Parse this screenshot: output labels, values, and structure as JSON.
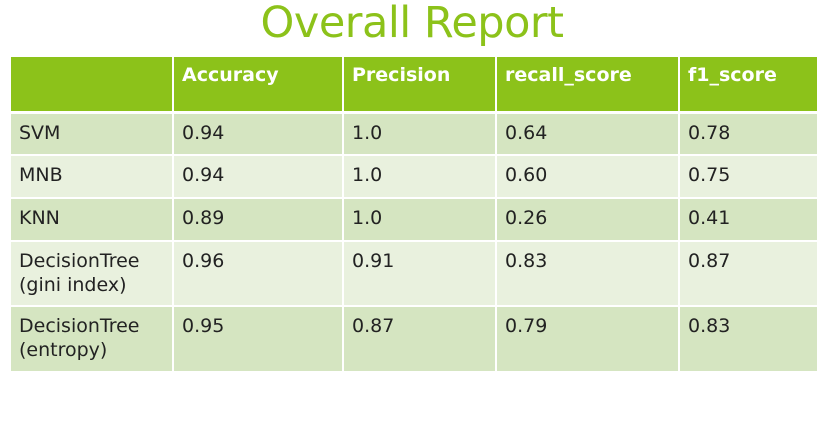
{
  "title": "Overall Report",
  "table": {
    "headers": [
      "",
      "Accuracy",
      "Precision",
      "recall_score",
      "f1_score"
    ],
    "rows": [
      {
        "model": "SVM",
        "accuracy": "0.94",
        "precision": "1.0",
        "recall_score": "0.64",
        "f1_score": "0.78"
      },
      {
        "model": "MNB",
        "accuracy": "0.94",
        "precision": "1.0",
        "recall_score": "0.60",
        "f1_score": "0.75"
      },
      {
        "model": "KNN",
        "accuracy": "0.89",
        "precision": "1.0",
        "recall_score": "0.26",
        "f1_score": "0.41"
      },
      {
        "model": "DecisionTree (gini index)",
        "accuracy": "0.96",
        "precision": "0.91",
        "recall_score": "0.83",
        "f1_score": "0.87"
      },
      {
        "model": "DecisionTree (entropy)",
        "accuracy": "0.95",
        "precision": "0.87",
        "recall_score": "0.79",
        "f1_score": "0.83"
      }
    ]
  },
  "colors": {
    "accent": "#8cc21a",
    "row_dark": "#d5e5c1",
    "row_light": "#e9f1de"
  }
}
